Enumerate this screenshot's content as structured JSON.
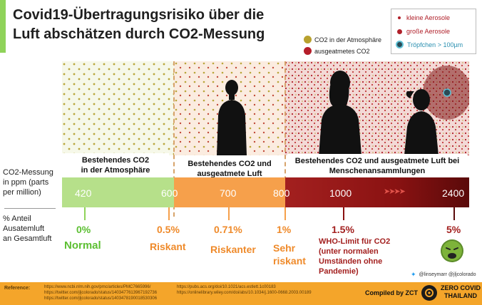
{
  "title_lines": [
    "Covid19-Übertragungsrisiko über die",
    "Luft abschätzen durch CO2-Messung"
  ],
  "legend": {
    "small_aerosols": "kleine Aerosole",
    "large_aerosols": "große Aerosole",
    "droplets": "Tröpfchen > 100µm"
  },
  "co2_legend": {
    "atmosphere": "CO2 in der Atmosphäre",
    "exhaled": "ausgeatmetes CO2"
  },
  "captions": {
    "zone1": [
      "Bestehendes CO2",
      "in der Atmosphäre"
    ],
    "zone2": [
      "Bestehendes CO2 und",
      "ausgeatmete Luft"
    ],
    "zone3": [
      "Bestehendes CO2 und ausgeatmete Luft bei",
      "Menschenansammlungen"
    ]
  },
  "scale_label": [
    "CO2-Messung",
    "in ppm (parts",
    "per million)"
  ],
  "scale_values": [
    "420",
    "600",
    "700",
    "800",
    "1000",
    "2400"
  ],
  "pct_label": [
    "% Anteil",
    "Ausatemluft",
    "an Gesamtluft"
  ],
  "percentages": [
    "0%",
    "0.5%",
    "0.71%",
    "1%",
    "1.5%",
    "5%"
  ],
  "levels": {
    "normal": "Normal",
    "risky": "Riskant",
    "riskier": "Riskanter",
    "very_risky": [
      "Sehr",
      "riskant"
    ],
    "who": [
      "WHO-Limit für CO2",
      "(unter normalen",
      "Umständen ohne",
      "Pandemie)"
    ]
  },
  "colors": {
    "accent": "#8fd35a",
    "green": "#5cbf32",
    "orange": "#ef8a2a",
    "red": "#a3201f",
    "footer": "#f4a52a"
  },
  "icons": [
    "sick-face-icon",
    "twitter-icon",
    "zero-covid-logo-icon"
  ],
  "footer": {
    "reference_label": "Reference:",
    "refs_left": [
      "https://www.ncbi.nlm.nih.gov/pmc/articles/PMC7665996/",
      "https://twitter.com/jljcolorado/status/1403477613967192736",
      "https://twitter.com/jljcolorado/status/1403478190018530306"
    ],
    "refs_right": [
      "https://pubs.acs.org/doi/10.1021/acs.estlett.1c00183",
      "https://onlinelibrary.wiley.com/doi/abs/10.1034/j.1600-0668.2003.00189"
    ],
    "handles": "@linseymarr @jljcolorado",
    "compiled": "Compiled by ZCT",
    "logo_line1": "ZERO COVID",
    "logo_line2": "THAILAND"
  }
}
